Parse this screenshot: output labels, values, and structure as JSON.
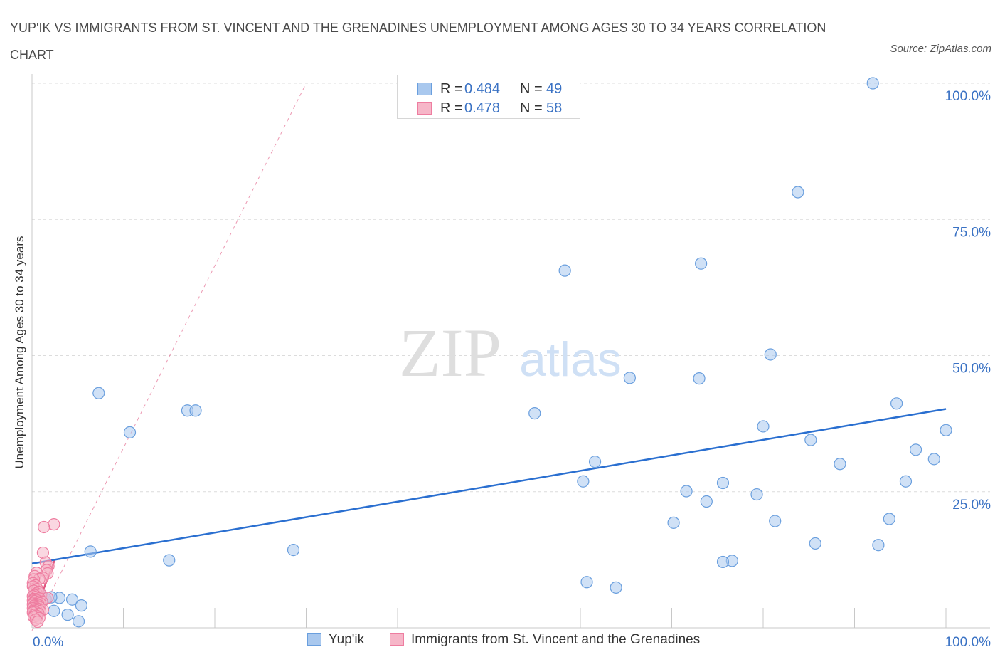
{
  "header": {
    "title": "YUP'IK VS IMMIGRANTS FROM ST. VINCENT AND THE GRENADINES UNEMPLOYMENT AMONG AGES 30 TO 34 YEARS CORRELATION CHART",
    "source": "Source: ZipAtlas.com"
  },
  "watermark": {
    "zip": "ZIP",
    "atlas": "atlas"
  },
  "legend": {
    "r_label": "R =",
    "n_label": "N =",
    "rows": [
      {
        "r": "0.484",
        "n": "49"
      },
      {
        "r": "0.478",
        "n": "58"
      }
    ]
  },
  "colors": {
    "blue_fill": "#a9c8ee",
    "blue_stroke": "#6a9fde",
    "blue_line": "#2a6fd0",
    "pink_fill": "#f6b6c8",
    "pink_stroke": "#ee7da0",
    "pink_line": "#e0557f",
    "accent_text": "#3a72c4",
    "grid": "#dcdcdc"
  },
  "chart_data": {
    "type": "scatter",
    "title": "YUP'IK VS IMMIGRANTS FROM ST. VINCENT AND THE GRENADINES UNEMPLOYMENT AMONG AGES 30 TO 34 YEARS CORRELATION CHART",
    "xlabel": "",
    "ylabel": "Unemployment Among Ages 30 to 34 years",
    "xlim": [
      0,
      100
    ],
    "ylim": [
      0,
      100
    ],
    "x_tick_labels": [
      "0.0%",
      "100.0%"
    ],
    "y_tick_values": [
      25,
      50,
      75,
      100
    ],
    "y_tick_labels": [
      "25.0%",
      "50.0%",
      "75.0%",
      "100.0%"
    ],
    "grid": true,
    "legend_position": "top-center",
    "series": [
      {
        "name": "Yup'ik",
        "R": 0.484,
        "N": 49,
        "trendline": {
          "x": [
            0,
            100
          ],
          "y": [
            11.8,
            40.2
          ]
        },
        "points": [
          [
            92,
            100
          ],
          [
            83.8,
            80
          ],
          [
            58.3,
            65.6
          ],
          [
            73.2,
            66.9
          ],
          [
            80.8,
            50.2
          ],
          [
            73,
            45.8
          ],
          [
            65.4,
            45.9
          ],
          [
            94.6,
            41.2
          ],
          [
            55,
            39.4
          ],
          [
            80,
            37
          ],
          [
            100,
            36.3
          ],
          [
            85.2,
            34.5
          ],
          [
            96.7,
            32.7
          ],
          [
            98.7,
            31
          ],
          [
            88.4,
            30.1
          ],
          [
            61.6,
            30.5
          ],
          [
            60.3,
            26.9
          ],
          [
            75.6,
            26.6
          ],
          [
            95.6,
            26.9
          ],
          [
            71.6,
            25.1
          ],
          [
            79.3,
            24.5
          ],
          [
            73.8,
            23.2
          ],
          [
            81.3,
            19.6
          ],
          [
            93.8,
            20
          ],
          [
            70.2,
            19.3
          ],
          [
            85.7,
            15.5
          ],
          [
            92.6,
            15.2
          ],
          [
            76.6,
            12.3
          ],
          [
            75.6,
            12.1
          ],
          [
            60.7,
            8.4
          ],
          [
            63.9,
            7.4
          ],
          [
            7.3,
            43.1
          ],
          [
            10.7,
            35.9
          ],
          [
            17,
            39.9
          ],
          [
            17.9,
            39.9
          ],
          [
            28.6,
            14.3
          ],
          [
            15,
            12.4
          ],
          [
            6.4,
            14
          ],
          [
            3,
            5.5
          ],
          [
            4.4,
            5.2
          ],
          [
            1.5,
            5.3
          ],
          [
            2.4,
            3.1
          ],
          [
            3.9,
            2.4
          ],
          [
            5.1,
            1.2
          ],
          [
            1,
            6.1
          ],
          [
            0.6,
            4.5
          ],
          [
            0.3,
            5.8
          ],
          [
            5.4,
            4.1
          ],
          [
            2.1,
            5.6
          ]
        ]
      },
      {
        "name": "Immigrants from St. Vincent and the Grenadines",
        "R": 0.478,
        "N": 58,
        "trendline": {
          "x": [
            0,
            30
          ],
          "y": [
            -0.5,
            100
          ]
        },
        "points": [
          [
            2.4,
            19
          ],
          [
            1.3,
            18.5
          ],
          [
            1.2,
            13.8
          ],
          [
            1.5,
            12
          ],
          [
            1.8,
            11.3
          ],
          [
            1.6,
            10.6
          ],
          [
            1.7,
            10
          ],
          [
            0.5,
            10.1
          ],
          [
            0.3,
            9.5
          ],
          [
            1.2,
            9.2
          ],
          [
            0.8,
            9
          ],
          [
            0.2,
            8.9
          ],
          [
            0.1,
            8.2
          ],
          [
            0.4,
            7.8
          ],
          [
            0.3,
            7.2
          ],
          [
            0.1,
            7.6
          ],
          [
            0.6,
            7.1
          ],
          [
            0.2,
            6.8
          ],
          [
            0.7,
            6.6
          ],
          [
            0.5,
            6.3
          ],
          [
            1,
            6.1
          ],
          [
            0.3,
            6
          ],
          [
            0.1,
            5.8
          ],
          [
            0.4,
            5.6
          ],
          [
            1.7,
            5.5
          ],
          [
            0.8,
            5.4
          ],
          [
            0.2,
            5.3
          ],
          [
            0.5,
            5.1
          ],
          [
            0.1,
            5
          ],
          [
            0.3,
            4.9
          ],
          [
            1.1,
            4.8
          ],
          [
            0.6,
            4.7
          ],
          [
            0.2,
            4.6
          ],
          [
            0.9,
            4.5
          ],
          [
            0.4,
            4.4
          ],
          [
            0.1,
            4.3
          ],
          [
            0.7,
            4.2
          ],
          [
            0.3,
            4.1
          ],
          [
            0.5,
            4
          ],
          [
            0.2,
            3.9
          ],
          [
            0.8,
            3.8
          ],
          [
            0.4,
            3.7
          ],
          [
            0.1,
            3.6
          ],
          [
            0.6,
            3.5
          ],
          [
            0.3,
            3.4
          ],
          [
            1.2,
            3.3
          ],
          [
            0.5,
            3.2
          ],
          [
            0.2,
            3.1
          ],
          [
            0.9,
            3
          ],
          [
            0.4,
            2.9
          ],
          [
            0.1,
            2.8
          ],
          [
            0.7,
            2.6
          ],
          [
            0.3,
            2.4
          ],
          [
            0.5,
            2.2
          ],
          [
            0.2,
            2
          ],
          [
            0.8,
            1.8
          ],
          [
            0.4,
            1.5
          ],
          [
            0.6,
            1.1
          ]
        ]
      }
    ]
  }
}
